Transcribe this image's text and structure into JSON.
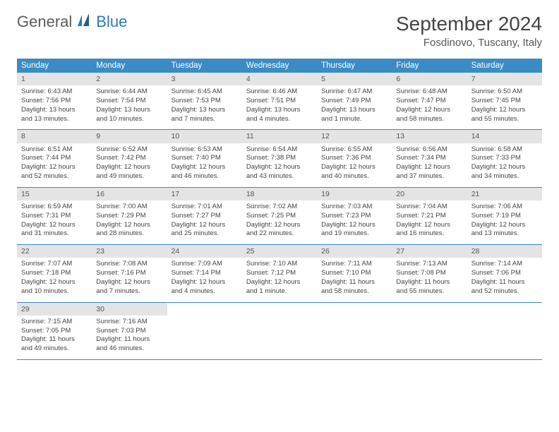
{
  "logo": {
    "general": "General",
    "blue": "Blue"
  },
  "title": "September 2024",
  "location": "Fosdinovo, Tuscany, Italy",
  "colors": {
    "header_bg": "#3b8bc4",
    "header_fg": "#ffffff",
    "daynum_bg": "#e4e4e4",
    "rule": "#3b8bc4",
    "logo_blue": "#2a7ab8",
    "logo_gray": "#5a5a5a"
  },
  "weekdays": [
    "Sunday",
    "Monday",
    "Tuesday",
    "Wednesday",
    "Thursday",
    "Friday",
    "Saturday"
  ],
  "weeks": [
    [
      {
        "n": "1",
        "sr": "Sunrise: 6:43 AM",
        "ss": "Sunset: 7:56 PM",
        "dl": "Daylight: 13 hours and 13 minutes."
      },
      {
        "n": "2",
        "sr": "Sunrise: 6:44 AM",
        "ss": "Sunset: 7:54 PM",
        "dl": "Daylight: 13 hours and 10 minutes."
      },
      {
        "n": "3",
        "sr": "Sunrise: 6:45 AM",
        "ss": "Sunset: 7:53 PM",
        "dl": "Daylight: 13 hours and 7 minutes."
      },
      {
        "n": "4",
        "sr": "Sunrise: 6:46 AM",
        "ss": "Sunset: 7:51 PM",
        "dl": "Daylight: 13 hours and 4 minutes."
      },
      {
        "n": "5",
        "sr": "Sunrise: 6:47 AM",
        "ss": "Sunset: 7:49 PM",
        "dl": "Daylight: 13 hours and 1 minute."
      },
      {
        "n": "6",
        "sr": "Sunrise: 6:48 AM",
        "ss": "Sunset: 7:47 PM",
        "dl": "Daylight: 12 hours and 58 minutes."
      },
      {
        "n": "7",
        "sr": "Sunrise: 6:50 AM",
        "ss": "Sunset: 7:45 PM",
        "dl": "Daylight: 12 hours and 55 minutes."
      }
    ],
    [
      {
        "n": "8",
        "sr": "Sunrise: 6:51 AM",
        "ss": "Sunset: 7:44 PM",
        "dl": "Daylight: 12 hours and 52 minutes."
      },
      {
        "n": "9",
        "sr": "Sunrise: 6:52 AM",
        "ss": "Sunset: 7:42 PM",
        "dl": "Daylight: 12 hours and 49 minutes."
      },
      {
        "n": "10",
        "sr": "Sunrise: 6:53 AM",
        "ss": "Sunset: 7:40 PM",
        "dl": "Daylight: 12 hours and 46 minutes."
      },
      {
        "n": "11",
        "sr": "Sunrise: 6:54 AM",
        "ss": "Sunset: 7:38 PM",
        "dl": "Daylight: 12 hours and 43 minutes."
      },
      {
        "n": "12",
        "sr": "Sunrise: 6:55 AM",
        "ss": "Sunset: 7:36 PM",
        "dl": "Daylight: 12 hours and 40 minutes."
      },
      {
        "n": "13",
        "sr": "Sunrise: 6:56 AM",
        "ss": "Sunset: 7:34 PM",
        "dl": "Daylight: 12 hours and 37 minutes."
      },
      {
        "n": "14",
        "sr": "Sunrise: 6:58 AM",
        "ss": "Sunset: 7:33 PM",
        "dl": "Daylight: 12 hours and 34 minutes."
      }
    ],
    [
      {
        "n": "15",
        "sr": "Sunrise: 6:59 AM",
        "ss": "Sunset: 7:31 PM",
        "dl": "Daylight: 12 hours and 31 minutes."
      },
      {
        "n": "16",
        "sr": "Sunrise: 7:00 AM",
        "ss": "Sunset: 7:29 PM",
        "dl": "Daylight: 12 hours and 28 minutes."
      },
      {
        "n": "17",
        "sr": "Sunrise: 7:01 AM",
        "ss": "Sunset: 7:27 PM",
        "dl": "Daylight: 12 hours and 25 minutes."
      },
      {
        "n": "18",
        "sr": "Sunrise: 7:02 AM",
        "ss": "Sunset: 7:25 PM",
        "dl": "Daylight: 12 hours and 22 minutes."
      },
      {
        "n": "19",
        "sr": "Sunrise: 7:03 AM",
        "ss": "Sunset: 7:23 PM",
        "dl": "Daylight: 12 hours and 19 minutes."
      },
      {
        "n": "20",
        "sr": "Sunrise: 7:04 AM",
        "ss": "Sunset: 7:21 PM",
        "dl": "Daylight: 12 hours and 16 minutes."
      },
      {
        "n": "21",
        "sr": "Sunrise: 7:06 AM",
        "ss": "Sunset: 7:19 PM",
        "dl": "Daylight: 12 hours and 13 minutes."
      }
    ],
    [
      {
        "n": "22",
        "sr": "Sunrise: 7:07 AM",
        "ss": "Sunset: 7:18 PM",
        "dl": "Daylight: 12 hours and 10 minutes."
      },
      {
        "n": "23",
        "sr": "Sunrise: 7:08 AM",
        "ss": "Sunset: 7:16 PM",
        "dl": "Daylight: 12 hours and 7 minutes."
      },
      {
        "n": "24",
        "sr": "Sunrise: 7:09 AM",
        "ss": "Sunset: 7:14 PM",
        "dl": "Daylight: 12 hours and 4 minutes."
      },
      {
        "n": "25",
        "sr": "Sunrise: 7:10 AM",
        "ss": "Sunset: 7:12 PM",
        "dl": "Daylight: 12 hours and 1 minute."
      },
      {
        "n": "26",
        "sr": "Sunrise: 7:11 AM",
        "ss": "Sunset: 7:10 PM",
        "dl": "Daylight: 11 hours and 58 minutes."
      },
      {
        "n": "27",
        "sr": "Sunrise: 7:13 AM",
        "ss": "Sunset: 7:08 PM",
        "dl": "Daylight: 11 hours and 55 minutes."
      },
      {
        "n": "28",
        "sr": "Sunrise: 7:14 AM",
        "ss": "Sunset: 7:06 PM",
        "dl": "Daylight: 11 hours and 52 minutes."
      }
    ],
    [
      {
        "n": "29",
        "sr": "Sunrise: 7:15 AM",
        "ss": "Sunset: 7:05 PM",
        "dl": "Daylight: 11 hours and 49 minutes."
      },
      {
        "n": "30",
        "sr": "Sunrise: 7:16 AM",
        "ss": "Sunset: 7:03 PM",
        "dl": "Daylight: 11 hours and 46 minutes."
      },
      null,
      null,
      null,
      null,
      null
    ]
  ]
}
